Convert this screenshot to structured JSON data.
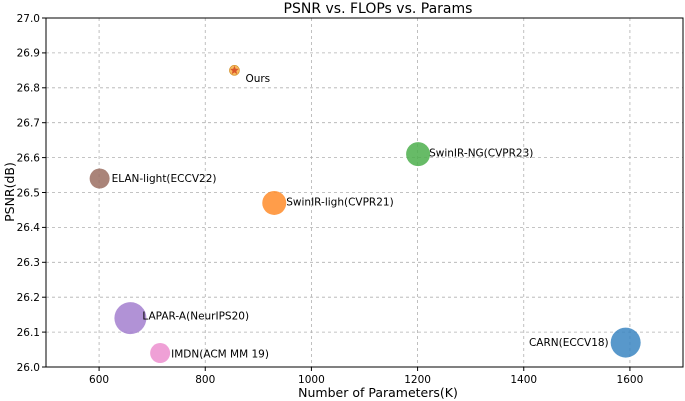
{
  "chart_data": {
    "type": "scatter",
    "title": "PSNR vs. FLOPs vs. Params",
    "xlabel": "Number of Parameters(K)",
    "ylabel": "PSNR(dB)",
    "xlim": [
      500,
      1700
    ],
    "ylim": [
      26.0,
      27.0
    ],
    "xticks": [
      600,
      800,
      1000,
      1200,
      1400,
      1600
    ],
    "yticks": [
      26.0,
      26.1,
      26.2,
      26.3,
      26.4,
      26.5,
      26.6,
      26.7,
      26.8,
      26.9,
      27.0
    ],
    "grid": true,
    "points": [
      {
        "label": "Ours",
        "x": 855,
        "y": 26.85,
        "color": "#f5a32a",
        "marker": "star"
      },
      {
        "label": "ELAN-light(ECCV22)",
        "x": 601,
        "y": 26.54,
        "color": "#9b6e62"
      },
      {
        "label": "SwinIR-ligh(CVPR21)",
        "x": 930,
        "y": 26.47,
        "color": "#ff8c2a"
      },
      {
        "label": "SwinIR-NG(CVPR23)",
        "x": 1201,
        "y": 26.61,
        "color": "#4caf4c"
      },
      {
        "label": "LAPAR-A(NeurIPS20)",
        "x": 659,
        "y": 26.14,
        "color": "#a37fcf"
      },
      {
        "label": "IMDN(ACM MM 19)",
        "x": 715,
        "y": 26.04,
        "color": "#ec8fcf"
      },
      {
        "label": "CARN(ECCV18)",
        "x": 1592,
        "y": 26.07,
        "color": "#3b86c2"
      }
    ]
  }
}
